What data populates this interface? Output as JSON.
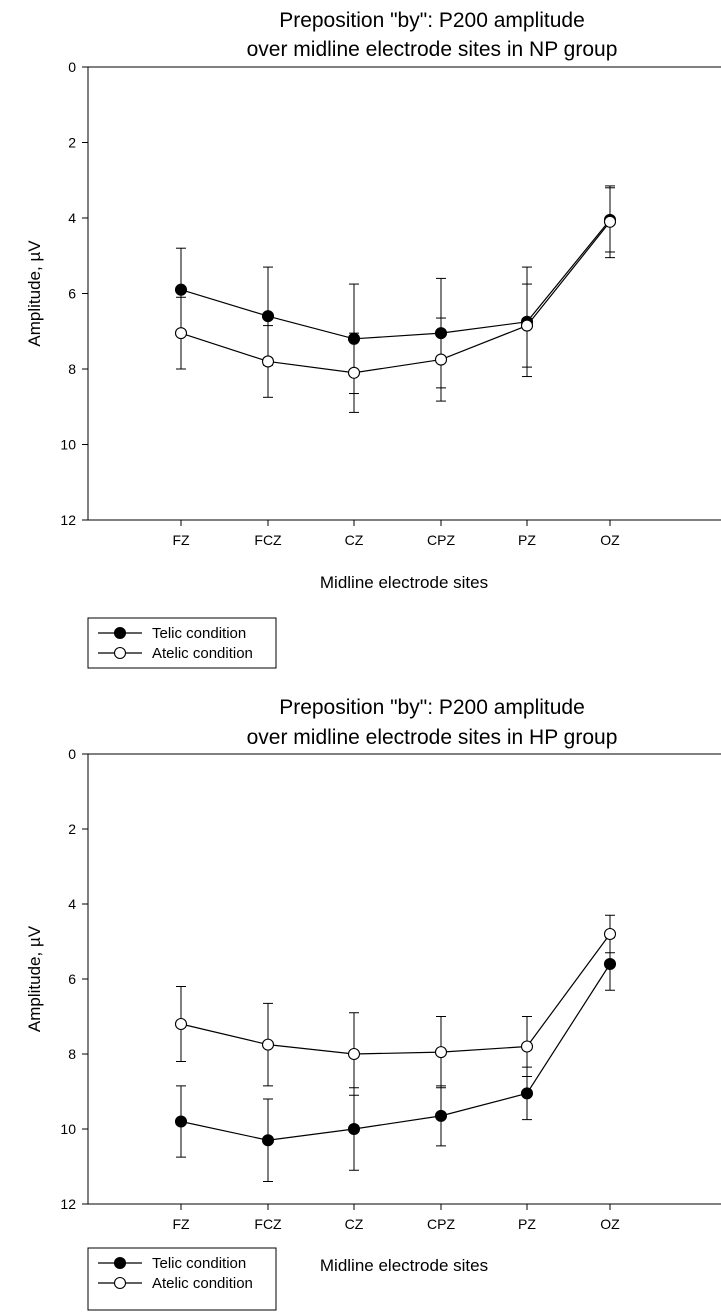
{
  "chart_data": [
    {
      "type": "line",
      "title_line1": "Preposition \"by\": P200 amplitude",
      "title_line2": "over midline electrode sites in NP group",
      "xlabel": "Midline electrode sites",
      "ylabel": "Amplitude, µV",
      "categories": [
        "FZ",
        "FCZ",
        "CZ",
        "CPZ",
        "PZ",
        "OZ"
      ],
      "ylim": [
        0,
        12
      ],
      "y_inverted": true,
      "yticks": [
        0,
        2,
        4,
        6,
        8,
        10,
        12
      ],
      "legend_position": "bottom-left",
      "series": [
        {
          "name": "Telic condition",
          "marker": "filled-circle",
          "values": [
            5.9,
            6.6,
            7.2,
            7.05,
            6.75,
            4.05
          ],
          "error": [
            1.1,
            1.3,
            1.45,
            1.45,
            1.45,
            0.85
          ]
        },
        {
          "name": "Atelic condition",
          "marker": "open-circle",
          "values": [
            7.05,
            7.8,
            8.1,
            7.75,
            6.85,
            4.1
          ],
          "error": [
            0.95,
            0.95,
            1.05,
            1.1,
            1.1,
            0.95
          ]
        }
      ]
    },
    {
      "type": "line",
      "title_line1": "Preposition \"by\": P200 amplitude",
      "title_line2": "over midline electrode sites in HP group",
      "xlabel": "Midline electrode sites",
      "ylabel": "Amplitude, µV",
      "categories": [
        "FZ",
        "FCZ",
        "CZ",
        "CPZ",
        "PZ",
        "OZ"
      ],
      "ylim": [
        0,
        12
      ],
      "y_inverted": true,
      "yticks": [
        0,
        2,
        4,
        6,
        8,
        10,
        12
      ],
      "legend_position": "bottom-left",
      "series": [
        {
          "name": "Telic condition",
          "marker": "filled-circle",
          "values": [
            9.8,
            10.3,
            10.0,
            9.65,
            9.05,
            5.6
          ],
          "error": [
            0.95,
            1.1,
            1.1,
            0.8,
            0.7,
            0.7
          ]
        },
        {
          "name": "Atelic condition",
          "marker": "open-circle",
          "values": [
            7.2,
            7.75,
            8.0,
            7.95,
            7.8,
            4.8
          ],
          "error": [
            1.0,
            1.1,
            1.1,
            0.95,
            0.8,
            0.5
          ]
        }
      ]
    }
  ]
}
